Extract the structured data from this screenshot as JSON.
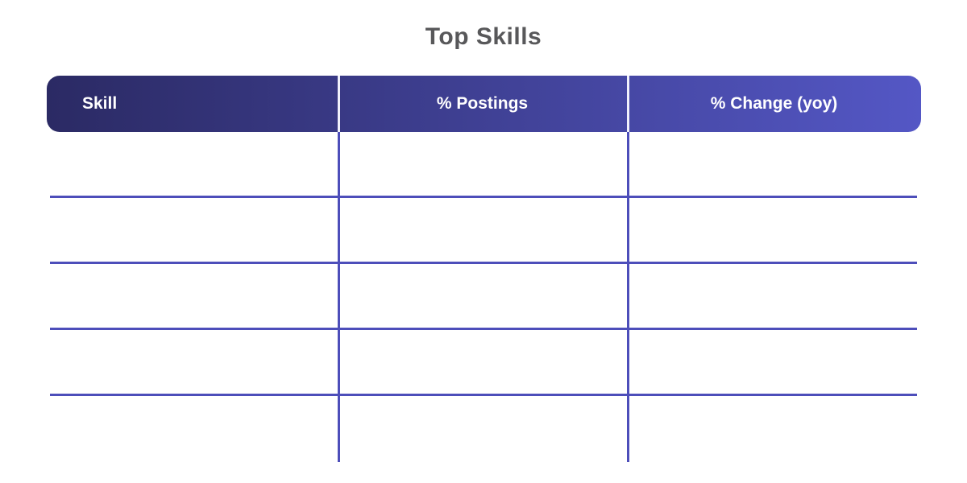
{
  "chart_data": {
    "type": "table",
    "title": "Top Skills",
    "columns": [
      "Skill",
      "% Postings",
      "% Change (yoy)"
    ],
    "column_alignments": [
      "left",
      "center",
      "center"
    ],
    "rows": [
      [
        "",
        "",
        ""
      ],
      [
        "",
        "",
        ""
      ],
      [
        "",
        "",
        ""
      ],
      [
        "",
        "",
        ""
      ],
      [
        "",
        "",
        ""
      ]
    ],
    "layout": {
      "legend": "none",
      "grid": "on",
      "header_style": "gradient-pill"
    }
  },
  "colors": {
    "background": "#ffffff",
    "title_text": "#58585a",
    "header_grad_start": "#2b2a64",
    "header_grad_end": "#5457c5",
    "header_text": "#ffffff",
    "header_divider": "#f0f1fb",
    "grid_line": "#4d4eba"
  }
}
